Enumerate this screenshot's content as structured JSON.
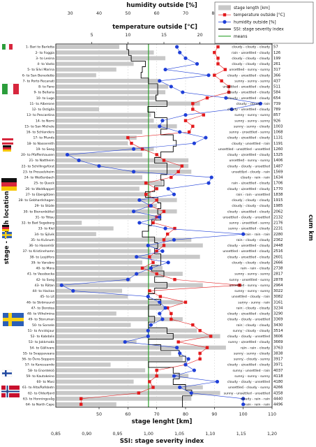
{
  "chart_data": {
    "type": "bar",
    "title": "",
    "axes": {
      "stage_length": {
        "label": "stage lenght [km]",
        "range": [
          35,
          110
        ],
        "ticks": [
          50,
          60,
          70,
          80,
          90,
          100,
          110
        ]
      },
      "humidity": {
        "label": "humidity outside [%]",
        "range": [
          25,
          100
        ],
        "ticks": [
          30,
          40,
          50,
          60,
          70,
          80,
          90,
          100
        ]
      },
      "temperature": {
        "label": "temperature outside [°C]",
        "range": [
          0,
          30
        ],
        "ticks": [
          5,
          10,
          15,
          20,
          25,
          30
        ]
      },
      "ssi": {
        "label": "SSI: stage severity index",
        "range": [
          0.85,
          1.2
        ],
        "ticks": [
          "0,85",
          "0,90",
          "0,95",
          "1,00",
          "1,05",
          "1,10",
          "1,15",
          "1,20"
        ]
      },
      "y_left": "stage - finish location",
      "y_right": "cum km"
    },
    "legend": [
      {
        "name": "stage length [km]",
        "color": "#c8c8c8",
        "marker": "bar"
      },
      {
        "name": "temperature outside [°C]",
        "color": "#e31a1c",
        "marker": "square"
      },
      {
        "name": "humidity outside [%]",
        "color": "#1f3fd8",
        "marker": "circle"
      },
      {
        "name": "SSI: stage severity index",
        "color": "#000000",
        "marker": "line"
      },
      {
        "name": "means",
        "color": "#2ca02c",
        "marker": "line"
      }
    ],
    "means": {
      "ssi": 1.0
    },
    "stages": [
      {
        "label": "1- Bari to Barletta",
        "km": 57,
        "cum": "57",
        "temp": 22.5,
        "hum": 67,
        "ssi": 0.965,
        "cond": "cloudy - cloudy - cloudy"
      },
      {
        "label": "2- to Foggia",
        "km": 69,
        "cum": "126",
        "temp": 22.0,
        "hum": 68,
        "ssi": 0.968,
        "cond": "rain - unsettled - cloudy"
      },
      {
        "label": "3- to Lesina",
        "km": 73,
        "cum": "199",
        "temp": 22.5,
        "hum": 70,
        "ssi": 0.972,
        "cond": "cloudy - cloudy - cloudy"
      },
      {
        "label": "4- to Vasto",
        "km": 62,
        "cum": "261",
        "temp": 22.5,
        "hum": 74,
        "ssi": 0.995,
        "cond": "cloudy - cloudy - cloudy"
      },
      {
        "label": "5- to Silvi Marina",
        "km": 56,
        "cum": "317",
        "temp": 23.5,
        "hum": 63,
        "ssi": 0.99,
        "cond": "unsettled - sunny - sunny"
      },
      {
        "label": "6- to San Benedetto",
        "km": 49,
        "cum": "366",
        "temp": 22.0,
        "hum": 78,
        "ssi": 0.988,
        "cond": "cloudy - unsettled - cloudy"
      },
      {
        "label": "7- to Porto Recanati",
        "km": 71,
        "cum": "437",
        "temp": 23.0,
        "hum": 61,
        "ssi": 1.0,
        "cond": "sunny - sunny - sunny"
      },
      {
        "label": "8- to Fano",
        "km": 74,
        "cum": "511",
        "temp": 24.0,
        "hum": 65,
        "ssi": 1.015,
        "cond": "unsettled - unsettled - cloudy"
      },
      {
        "label": "9- to Bellaria",
        "km": 73,
        "cum": "584",
        "temp": 24.0,
        "hum": 69,
        "ssi": 1.015,
        "cond": "cloudy - unsettled - cloudy"
      },
      {
        "label": "10- to Lugo",
        "km": 70,
        "cum": "654",
        "temp": 21.0,
        "hum": 84,
        "ssi": 1.012,
        "cond": "cloudy - unsettled - cloudy"
      },
      {
        "label": "11- to Alberone",
        "km": 85,
        "cum": "739",
        "temp": 19.0,
        "hum": 96,
        "ssi": 1.03,
        "cond": "cloudy - cloudy - rain"
      },
      {
        "label": "12- to Ostiglia",
        "km": 50,
        "cum": "789",
        "temp": 19.0,
        "hum": 86,
        "ssi": 0.999,
        "cond": "cloudy - unsettled - cloudy"
      },
      {
        "label": "13- to Pescantina",
        "km": 68,
        "cum": "857",
        "temp": 20.5,
        "hum": 70,
        "ssi": 1.01,
        "cond": "sunny - sunny - sunny"
      },
      {
        "label": "14- to Nomi",
        "km": 69,
        "cum": "926",
        "temp": 18.0,
        "hum": 62,
        "ssi": 1.03,
        "cond": "sunny - sunny - sunny"
      },
      {
        "label": "15- to San Michele",
        "km": 77,
        "cum": "1003",
        "temp": 19.0,
        "hum": 61,
        "ssi": 1.03,
        "cond": "sunny - sunny - cloudy"
      },
      {
        "label": "16- to Schlanders",
        "km": 65,
        "cum": "1068",
        "temp": 18.5,
        "hum": 68,
        "ssi": 1.02,
        "cond": "sunny - unsettled - sunny"
      },
      {
        "label": "17- to Pfunds",
        "km": 63,
        "cum": "1131",
        "temp": 10.0,
        "hum": 77,
        "ssi": 1.04,
        "cond": "cloudy - unsettled - cloudy"
      },
      {
        "label": "18- to Nassereith",
        "km": 60,
        "cum": "1191",
        "temp": 10.5,
        "hum": 73,
        "ssi": 1.045,
        "cond": "cloudy - unsettled - rain"
      },
      {
        "label": "19- to Seeg",
        "km": 69,
        "cum": "1260",
        "temp": 12.0,
        "hum": 52,
        "ssi": 1.04,
        "cond": "unsettled - unsettled - unsettled"
      },
      {
        "label": "20- to Pfaffenhausen",
        "km": 65,
        "cum": "1325",
        "temp": 14.0,
        "hum": 29,
        "ssi": 1.02,
        "cond": "cloudy - unsettled - cloudy"
      },
      {
        "label": "21- to Nattheim",
        "km": 81,
        "cum": "1406",
        "temp": 15.0,
        "hum": 33,
        "ssi": 1.01,
        "cond": "unsettled - sunny - sunny"
      },
      {
        "label": "22- to Schillingsfürst",
        "km": 81,
        "cum": "1487",
        "temp": 17.5,
        "hum": 40,
        "ssi": 1.03,
        "cond": "cloudy - cloudy - unsettled"
      },
      {
        "label": "23- to Prosselsheim",
        "km": 82,
        "cum": "1569",
        "temp": 17.0,
        "hum": 52,
        "ssi": 1.03,
        "cond": "unsettled - cloudy - rain"
      },
      {
        "label": "24- to Weißenbach",
        "km": 65,
        "cum": "1634",
        "temp": 16.0,
        "hum": 79,
        "ssi": 1.02,
        "cond": "cloudy - rain - rain"
      },
      {
        "label": "25- to Queck",
        "km": 72,
        "cum": "1706",
        "temp": 12.5,
        "hum": 78,
        "ssi": 1.025,
        "cond": "rain - unsettled - cloudy"
      },
      {
        "label": "26- to Waldkappel",
        "km": 64,
        "cum": "1770",
        "temp": 14.0,
        "hum": 64,
        "ssi": 1.01,
        "cond": "cloudy - unsettled - cloudy"
      },
      {
        "label": "27- to Ebergötzen",
        "km": 68,
        "cum": "1838",
        "temp": 12.5,
        "hum": 66,
        "ssi": 0.995,
        "cond": "rain - rain - unsettled"
      },
      {
        "label": "28- to Gebhardshagen",
        "km": 77,
        "cum": "1915",
        "temp": 14.0,
        "hum": 54,
        "ssi": 1.015,
        "cond": "cloudy - cloudy - cloudy"
      },
      {
        "label": "29- to Stüde",
        "km": 70,
        "cum": "1985",
        "temp": 13.0,
        "hum": 58,
        "ssi": 1.02,
        "cond": "cloudy - cloudy - cloudy"
      },
      {
        "label": "30- to Bienenbüttel",
        "km": 77,
        "cum": "2062",
        "proxy": true,
        "temp": 15.0,
        "hum": 52,
        "ssi": 1.015,
        "cond": "cloudy - unsettled - cloudy"
      },
      {
        "label": "31- to Tötau",
        "km": 70,
        "cum": "2132",
        "temp": 14.0,
        "hum": 61,
        "ssi": 1.02,
        "cond": "unsettled - cloudy - unsettled"
      },
      {
        "label": "32- to Bad Segeberg",
        "km": 44,
        "cum": "2176",
        "temp": 13.5,
        "hum": 54,
        "ssi": 1.005,
        "cond": "sunny - unsettled - sunny"
      },
      {
        "label": "33- to Kiel",
        "km": 55,
        "cum": "2231",
        "temp": 16.5,
        "hum": 63,
        "ssi": 1.0,
        "cond": "sunny - unsettled - cloudy"
      },
      {
        "label": "34- to Sjövik",
        "km": 49,
        "cum": "2280",
        "temp": 15.5,
        "hum": 90,
        "ssi": 0.99,
        "cond": "rain - rain - rain"
      },
      {
        "label": "35- to Kvänum",
        "km": 82,
        "cum": "2362",
        "temp": 15.0,
        "hum": 66,
        "ssi": 1.01,
        "cond": "rain - cloudy - cloudy"
      },
      {
        "label": "36- to Hasselrör",
        "km": 86,
        "cum": "2448",
        "temp": 15.0,
        "hum": 57,
        "ssi": 1.015,
        "cond": "cloudy - unsettled - cloudy"
      },
      {
        "label": "37- to Kristinehamn",
        "km": 68,
        "cum": "2516",
        "temp": 14.0,
        "hum": 62,
        "ssi": 1.01,
        "cond": "unsettled - unsettled - cloudy"
      },
      {
        "label": "38- to Lesjöfors",
        "km": 85,
        "cum": "2601",
        "temp": 13.0,
        "hum": 53,
        "ssi": 1.02,
        "cond": "cloudy - unsettled - cloudy"
      },
      {
        "label": "39- to Vansbro",
        "km": 65,
        "cum": "2666",
        "temp": 13.5,
        "hum": 64,
        "ssi": 1.02,
        "cond": "cloudy - cloudy - cloudy"
      },
      {
        "label": "40- to Mora",
        "km": 72,
        "cum": "2738",
        "temp": 12.0,
        "hum": 58,
        "ssi": 1.005,
        "cond": "rain - rain - cloudy"
      },
      {
        "label": "41- to Vassbacka",
        "km": 79,
        "cum": "2817",
        "temp": 14.0,
        "hum": 53,
        "ssi": 1.025,
        "cond": "sunny - sunny - sunny"
      },
      {
        "label": "42- to Sveg",
        "km": 61,
        "cum": "2878",
        "temp": 16.5,
        "hum": 50,
        "ssi": 1.01,
        "cond": "sunny - unsettled - sunny"
      },
      {
        "label": "43- to Rätan",
        "km": 86,
        "cum": "2964",
        "temp": 25.5,
        "hum": 27,
        "ssi": 1.03,
        "cond": "unsettled - sunny - sunny"
      },
      {
        "label": "44- to Hackas",
        "km": 58,
        "cum": "3022",
        "temp": 13.0,
        "hum": 31,
        "ssi": 1.01,
        "cond": "sunny - sunny - sunny"
      },
      {
        "label": "45- to Lit",
        "km": 60,
        "cum": "3082",
        "temp": 14.5,
        "hum": 57,
        "ssi": 1.0,
        "cond": "unsettled - cloudy - rain"
      },
      {
        "label": "46- to Strömsund",
        "km": 79,
        "cum": "3161",
        "temp": 18.0,
        "hum": 61,
        "ssi": 1.02,
        "cond": "sunny - sunny - rain"
      },
      {
        "label": "47- to Dorotea",
        "km": 73,
        "cum": "3234",
        "proxy": true,
        "temp": 15.5,
        "hum": 63,
        "ssi": 1.0,
        "cond": "rain - cloudy - cloudy"
      },
      {
        "label": "48- to Vilhelmina",
        "km": 56,
        "cum": "3290",
        "temp": 16.0,
        "hum": 61,
        "ssi": 1.0,
        "cond": "cloudy - unsettled - cloudy"
      },
      {
        "label": "49- to Storuman",
        "km": 79,
        "cum": "3369",
        "temp": 16.0,
        "hum": 62,
        "ssi": 1.01,
        "cond": "cloudy - cloudy - unsettled"
      },
      {
        "label": "50- to Sorsele",
        "km": 61,
        "cum": "3430",
        "temp": 19.0,
        "hum": 58,
        "ssi": 1.0,
        "cond": "rain - cloudy - cloudy"
      },
      {
        "label": "51- to Arvidsjaur",
        "km": 84,
        "cum": "3514",
        "temp": 20.0,
        "hum": 57,
        "ssi": 1.03,
        "cond": "sunny - cloudy - cloudy"
      },
      {
        "label": "52- to Kabdalis",
        "km": 92,
        "cum": "3606",
        "temp": 21.5,
        "hum": 57,
        "ssi": 1.04,
        "cond": "cloudy - cloudy - unsettled"
      },
      {
        "label": "53- to Jokkmokk",
        "km": 63,
        "cum": "3669",
        "temp": 17.0,
        "hum": 49,
        "ssi": 1.0,
        "cond": "sunny - unsettled - cloudy"
      },
      {
        "label": "54- to Gällivare",
        "km": 94,
        "cum": "3763",
        "temp": 21.0,
        "hum": 67,
        "ssi": 1.02,
        "cond": "rain - rain - cloudy"
      },
      {
        "label": "55- to Svappavaara",
        "km": 75,
        "cum": "3838",
        "proxy": true,
        "temp": 20.0,
        "hum": 68,
        "ssi": 1.05,
        "cond": "sunny - sunny - cloudy"
      },
      {
        "label": "56- to Övre-Soppero",
        "km": 79,
        "cum": "3917",
        "temp": 20.0,
        "hum": 71,
        "ssi": 1.06,
        "cond": "sunny - cloudy - sunny"
      },
      {
        "label": "57- to Karesuando",
        "km": 54,
        "cum": "3971",
        "temp": 18.0,
        "hum": 70,
        "ssi": 1.0,
        "cond": "cloudy - unsettled - cloudy"
      },
      {
        "label": "58- to Enontekiö",
        "km": 66,
        "cum": "4037",
        "temp": 14.0,
        "hum": 73,
        "ssi": 1.04,
        "cond": "sunny - unsettled - rain"
      },
      {
        "label": "59- to Kautokeino",
        "km": 81,
        "cum": "4118",
        "temp": 14.0,
        "hum": 66,
        "ssi": 1.05,
        "cond": "sunny - sunny - sunny"
      },
      {
        "label": "60- to Masi",
        "km": 62,
        "cum": "4180",
        "temp": 13.0,
        "hum": 81,
        "ssi": 1.04,
        "cond": "cloudy - cloudy - unsettled"
      },
      {
        "label": "61- to Alta/Rafsbotn",
        "km": 86,
        "cum": "4266",
        "temp": 13.5,
        "hum": 68,
        "ssi": 1.06,
        "cond": "unsettled - cloudy - sunny"
      },
      {
        "label": "62- to Olderfjord",
        "km": 92,
        "cum": "4358",
        "temp": 11.5,
        "hum": 72,
        "ssi": 1.07,
        "cond": "sunny - unsettled - unsettled"
      },
      {
        "label": "63- to Honningsvåg",
        "km": 82,
        "cum": "4440",
        "temp": 3.5,
        "hum": 90,
        "ssi": 1.055,
        "cond": "cloudy - rain - rain"
      },
      {
        "label": "64- to North Cape",
        "km": 56,
        "cum": "4496",
        "temp": 3.5,
        "hum": 90,
        "ssi": 1.055,
        "cond": "rain - rain - rain"
      }
    ]
  }
}
